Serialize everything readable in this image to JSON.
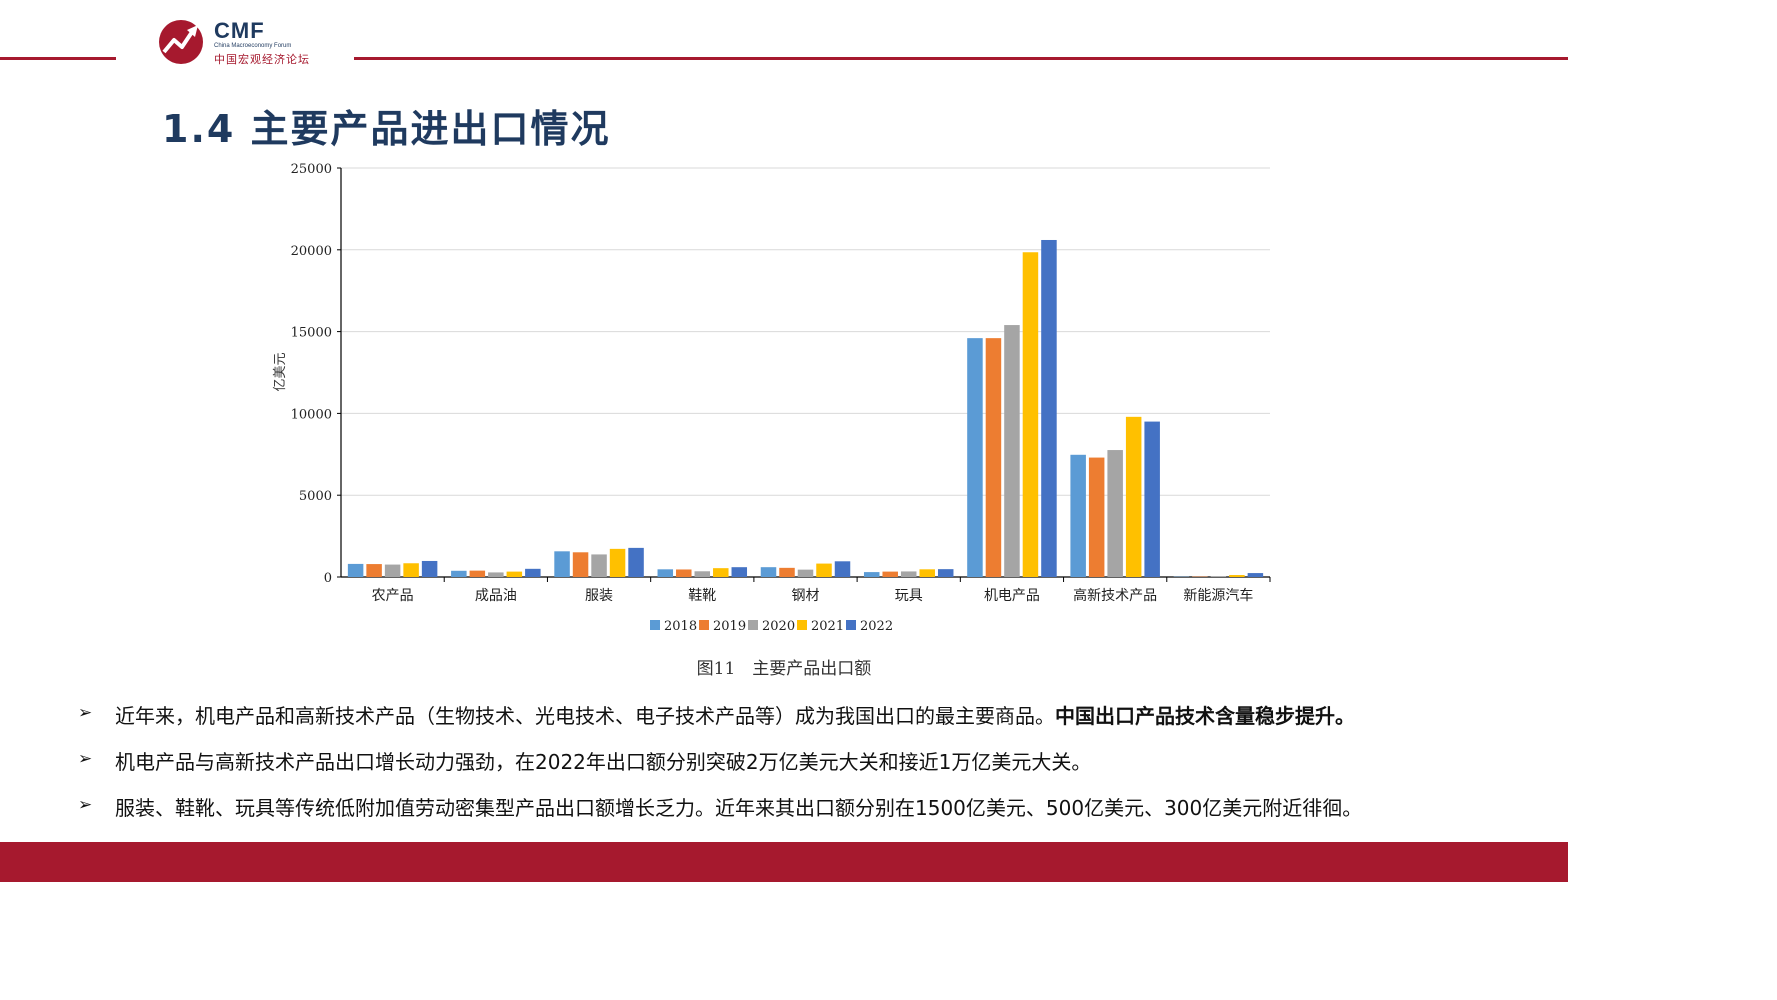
{
  "header": {
    "logo_text": "CMF",
    "logo_subtitle_en": "China Macroeconomy Forum",
    "logo_subtitle_cn": "中国宏观经济论坛",
    "brand_color": "#a6192e",
    "title_color": "#1f3a5f"
  },
  "page_title": "1.4 主要产品进出口情况",
  "chart_data": {
    "type": "bar",
    "title": "",
    "ylabel": "亿美元",
    "xlabel": "",
    "ylim": [
      0,
      25000
    ],
    "yticks": [
      0,
      5000,
      10000,
      15000,
      20000,
      25000
    ],
    "grid": true,
    "legend_position": "bottom",
    "categories": [
      "农产品",
      "成品油",
      "服装",
      "鞋靴",
      "钢材",
      "玩具",
      "机电产品",
      "高新技术产品",
      "新能源汽车"
    ],
    "series": [
      {
        "name": "2018",
        "color": "#5b9bd5",
        "values": [
          800,
          380,
          1570,
          470,
          600,
          300,
          14600,
          7470,
          20
        ]
      },
      {
        "name": "2019",
        "color": "#ed7d31",
        "values": [
          790,
          390,
          1510,
          460,
          560,
          330,
          14600,
          7300,
          25
        ]
      },
      {
        "name": "2020",
        "color": "#a5a5a5",
        "values": [
          760,
          280,
          1380,
          350,
          450,
          340,
          15400,
          7760,
          40
        ]
      },
      {
        "name": "2021",
        "color": "#ffc000",
        "values": [
          840,
          330,
          1720,
          540,
          820,
          470,
          19850,
          9790,
          120
        ]
      },
      {
        "name": "2022",
        "color": "#4472c4",
        "values": [
          980,
          500,
          1780,
          600,
          960,
          480,
          20600,
          9500,
          240
        ]
      }
    ]
  },
  "caption": "图11　主要产品出口额",
  "bullets": [
    {
      "text": "近年来，机电产品和高新技术产品（生物技术、光电技术、电子技术产品等）成为我国出口的最主要商品。",
      "strong": "中国出口产品技术含量稳步提升。"
    },
    {
      "text": "机电产品与高新技术产品出口增长动力强劲，在2022年出口额分别突破2万亿美元大关和接近1万亿美元大关。",
      "strong": ""
    },
    {
      "text": "服装、鞋靴、玩具等传统低附加值劳动密集型产品出口额增长乏力。近年来其出口额分别在1500亿美元、500亿美元、300亿美元附近徘徊。",
      "strong": ""
    }
  ]
}
